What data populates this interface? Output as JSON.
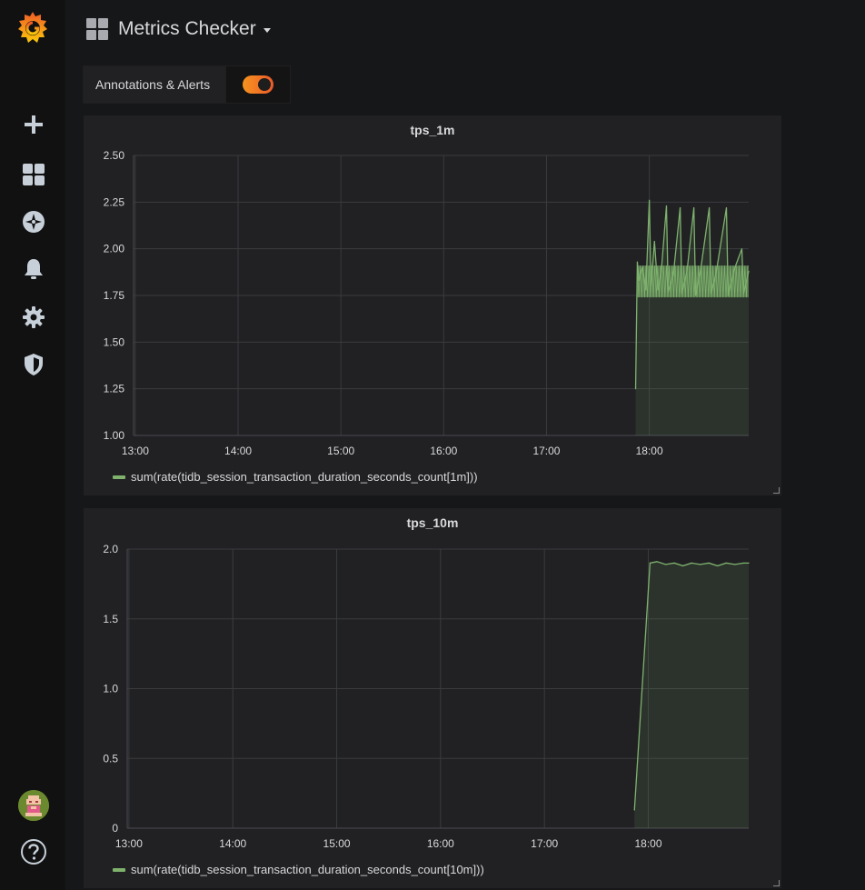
{
  "dashboard": {
    "title": "Metrics Checker"
  },
  "annotations_toggle": {
    "label": "Annotations & Alerts",
    "enabled": true
  },
  "sidebar": {
    "items": [
      "grafana-logo",
      "plus-icon",
      "dashboards-icon",
      "explore-icon",
      "alerting-icon",
      "settings-icon",
      "shield-icon"
    ],
    "bottom": [
      "avatar",
      "help-icon"
    ]
  },
  "colors": {
    "series": "#7eb26d",
    "accent": "#eb7b18",
    "panel_bg": "#212124"
  },
  "chart_data": [
    {
      "type": "line",
      "title": "tps_1m",
      "x_ticks": [
        "13:00",
        "14:00",
        "15:00",
        "16:00",
        "17:00",
        "18:00"
      ],
      "y_ticks": [
        "1.00",
        "1.25",
        "1.50",
        "1.75",
        "2.00",
        "2.25",
        "2.50"
      ],
      "ylim": [
        1.0,
        2.5
      ],
      "xlim": [
        "12:59",
        "18:58"
      ],
      "fill_below": true,
      "grid": true,
      "series": [
        {
          "name": "sum(rate(tidb_session_transaction_duration_seconds_count[1m]))",
          "points": [
            [
              "17:52",
              1.25
            ],
            [
              "17:53",
              1.93
            ],
            [
              "17:54",
              1.83
            ],
            [
              "17:56",
              1.9
            ],
            [
              "17:58",
              1.78
            ],
            [
              "18:00",
              2.26
            ],
            [
              "18:01",
              1.8
            ],
            [
              "18:03",
              2.04
            ],
            [
              "18:05",
              1.78
            ],
            [
              "18:07",
              1.88
            ],
            [
              "18:10",
              2.23
            ],
            [
              "18:11",
              1.77
            ],
            [
              "18:14",
              1.86
            ],
            [
              "18:18",
              2.22
            ],
            [
              "18:19",
              1.76
            ],
            [
              "18:22",
              1.88
            ],
            [
              "18:26",
              2.22
            ],
            [
              "18:27",
              1.75
            ],
            [
              "18:30",
              1.89
            ],
            [
              "18:35",
              2.22
            ],
            [
              "18:36",
              1.76
            ],
            [
              "18:39",
              1.87
            ],
            [
              "18:45",
              2.22
            ],
            [
              "18:46",
              1.75
            ],
            [
              "18:50",
              1.9
            ],
            [
              "18:54",
              2.0
            ],
            [
              "18:55",
              1.76
            ],
            [
              "18:58",
              1.88
            ]
          ],
          "band": {
            "start": "17:53",
            "end": "18:58",
            "low": 1.74,
            "high": 1.91
          }
        }
      ]
    },
    {
      "type": "line",
      "title": "tps_10m",
      "x_ticks": [
        "13:00",
        "14:00",
        "15:00",
        "16:00",
        "17:00",
        "18:00"
      ],
      "y_ticks": [
        "0",
        "0.5",
        "1.0",
        "1.5",
        "2.0"
      ],
      "ylim": [
        0,
        2.0
      ],
      "xlim": [
        "12:59",
        "18:58"
      ],
      "fill_below": true,
      "grid": true,
      "series": [
        {
          "name": "sum(rate(tidb_session_transaction_duration_seconds_count[10m]))",
          "points": [
            [
              "17:52",
              0.13
            ],
            [
              "18:01",
              1.9
            ],
            [
              "18:05",
              1.91
            ],
            [
              "18:10",
              1.89
            ],
            [
              "18:15",
              1.9
            ],
            [
              "18:20",
              1.88
            ],
            [
              "18:25",
              1.9
            ],
            [
              "18:30",
              1.89
            ],
            [
              "18:35",
              1.9
            ],
            [
              "18:40",
              1.88
            ],
            [
              "18:45",
              1.9
            ],
            [
              "18:50",
              1.89
            ],
            [
              "18:55",
              1.9
            ],
            [
              "18:58",
              1.9
            ]
          ]
        }
      ]
    }
  ]
}
